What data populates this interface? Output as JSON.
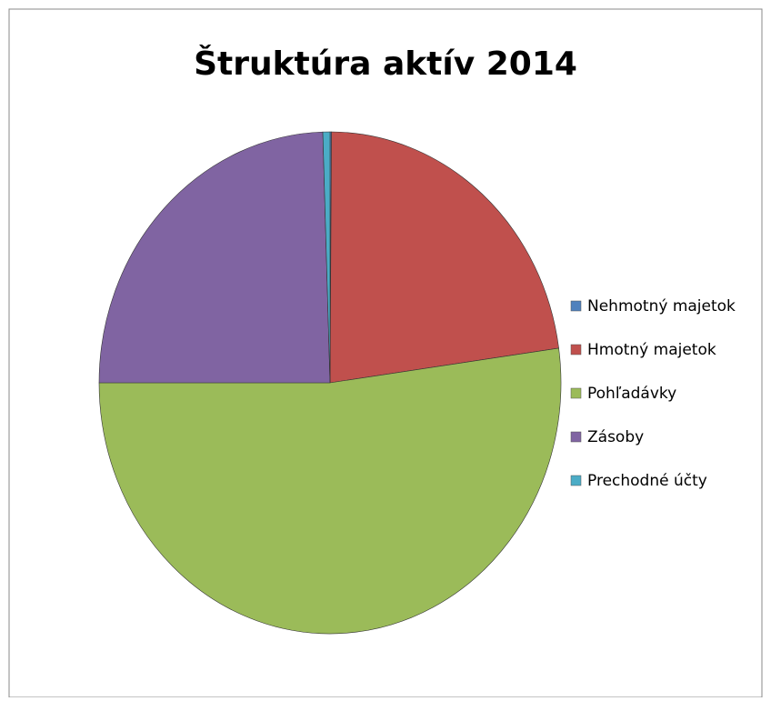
{
  "chart_data": {
    "type": "pie",
    "title": "Štruktúra aktív 2014",
    "categories": [
      "Nehmotný majetok",
      "Hmotný majetok",
      "Pohľadávky",
      "Zásoby",
      "Prechodné účty"
    ],
    "values": [
      0.1,
      22.7,
      52.2,
      24.5,
      0.5
    ],
    "colors": [
      "#4f81bd",
      "#c0504d",
      "#9bbb59",
      "#8064a2",
      "#4bacc6"
    ],
    "legend": "right"
  }
}
